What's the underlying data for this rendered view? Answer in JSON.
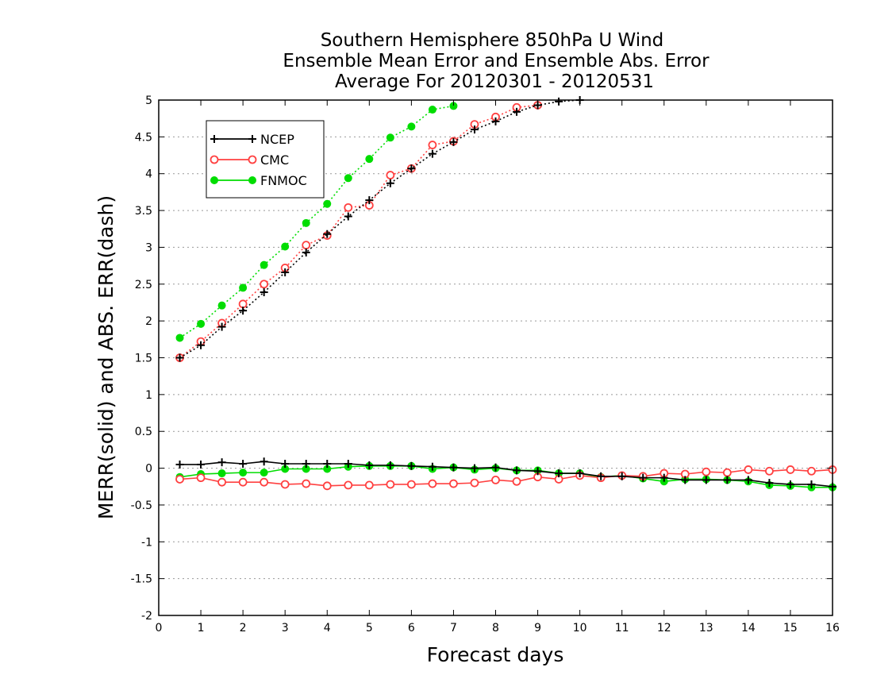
{
  "chart_data": {
    "type": "line",
    "title": [
      "Southern Hemisphere 850hPa U Wind",
      "Ensemble Mean Error and Ensemble Abs. Error",
      "Average For 20120301 - 20120531"
    ],
    "xlabel": "Forecast days",
    "ylabel": "MERR(solid) and ABS. ERR(dash)",
    "xlim": [
      0,
      16
    ],
    "ylim": [
      -2,
      5
    ],
    "xticks": [
      "0",
      "1",
      "2",
      "3",
      "4",
      "5",
      "6",
      "7",
      "8",
      "9",
      "10",
      "11",
      "12",
      "13",
      "14",
      "15",
      "16"
    ],
    "yticks": [
      "5",
      "4.5",
      "4",
      "3.5",
      "3",
      "2.5",
      "2",
      "1.5",
      "1",
      "0.5",
      "0",
      "-0.5",
      "-1",
      "-1.5",
      "-2"
    ],
    "grid": "horizontal dotted",
    "legend_position": "top-left",
    "x": [
      0.5,
      1,
      1.5,
      2,
      2.5,
      3,
      3.5,
      4,
      4.5,
      5,
      5.5,
      6,
      6.5,
      7,
      7.5,
      8,
      8.5,
      9,
      9.5,
      10,
      10.5,
      11,
      11.5,
      12,
      12.5,
      13,
      13.5,
      14,
      14.5,
      15,
      15.5,
      16
    ],
    "series": [
      {
        "name": "NCEP",
        "color": "#000000",
        "marker": "plus",
        "mean_error": [
          0.05,
          0.05,
          0.08,
          0.06,
          0.09,
          0.06,
          0.06,
          0.06,
          0.06,
          0.04,
          0.04,
          0.03,
          0.02,
          0.01,
          0.0,
          0.01,
          -0.03,
          -0.04,
          -0.07,
          -0.07,
          -0.11,
          -0.11,
          -0.13,
          -0.13,
          -0.16,
          -0.16,
          -0.16,
          -0.16,
          -0.2,
          -0.22,
          -0.22,
          -0.25
        ],
        "abs_error": [
          1.5,
          1.67,
          1.92,
          2.14,
          2.39,
          2.66,
          2.93,
          3.18,
          3.42,
          3.64,
          3.87,
          4.07,
          4.27,
          4.43,
          4.6,
          4.71,
          4.84,
          4.93,
          4.98,
          5.0,
          null,
          null,
          null,
          null,
          null,
          null,
          null,
          null,
          null,
          null,
          null,
          null
        ]
      },
      {
        "name": "CMC",
        "color": "#ff4040",
        "marker": "open-circle",
        "mean_error": [
          -0.15,
          -0.13,
          -0.19,
          -0.19,
          -0.19,
          -0.22,
          -0.21,
          -0.24,
          -0.23,
          -0.23,
          -0.22,
          -0.22,
          -0.21,
          -0.21,
          -0.2,
          -0.16,
          -0.18,
          -0.12,
          -0.15,
          -0.1,
          -0.13,
          -0.1,
          -0.11,
          -0.07,
          -0.08,
          -0.05,
          -0.06,
          -0.02,
          -0.04,
          -0.02,
          -0.04,
          -0.02
        ],
        "abs_error": [
          1.5,
          1.72,
          1.97,
          2.23,
          2.5,
          2.72,
          3.03,
          3.16,
          3.54,
          3.57,
          3.98,
          4.07,
          4.39,
          4.44,
          4.67,
          4.77,
          4.9,
          4.93,
          null,
          null,
          null,
          null,
          null,
          null,
          null,
          null,
          null,
          null,
          null,
          null,
          null,
          null
        ]
      },
      {
        "name": "FNMOC",
        "color": "#00dd00",
        "marker": "filled-circle",
        "mean_error": [
          -0.12,
          -0.08,
          -0.07,
          -0.06,
          -0.06,
          -0.01,
          -0.01,
          -0.01,
          0.02,
          0.03,
          0.03,
          0.03,
          -0.01,
          0.01,
          -0.02,
          0.0,
          -0.03,
          -0.03,
          -0.07,
          -0.07,
          -0.12,
          -0.1,
          -0.14,
          -0.18,
          -0.15,
          -0.15,
          -0.16,
          -0.18,
          -0.23,
          -0.24,
          -0.26,
          -0.26
        ],
        "abs_error": [
          1.77,
          1.96,
          2.21,
          2.45,
          2.76,
          3.01,
          3.33,
          3.59,
          3.94,
          4.2,
          4.49,
          4.64,
          4.87,
          4.92,
          null,
          null,
          null,
          null,
          null,
          null,
          null,
          null,
          null,
          null,
          null,
          null,
          null,
          null,
          null,
          null,
          null,
          null
        ]
      }
    ]
  }
}
